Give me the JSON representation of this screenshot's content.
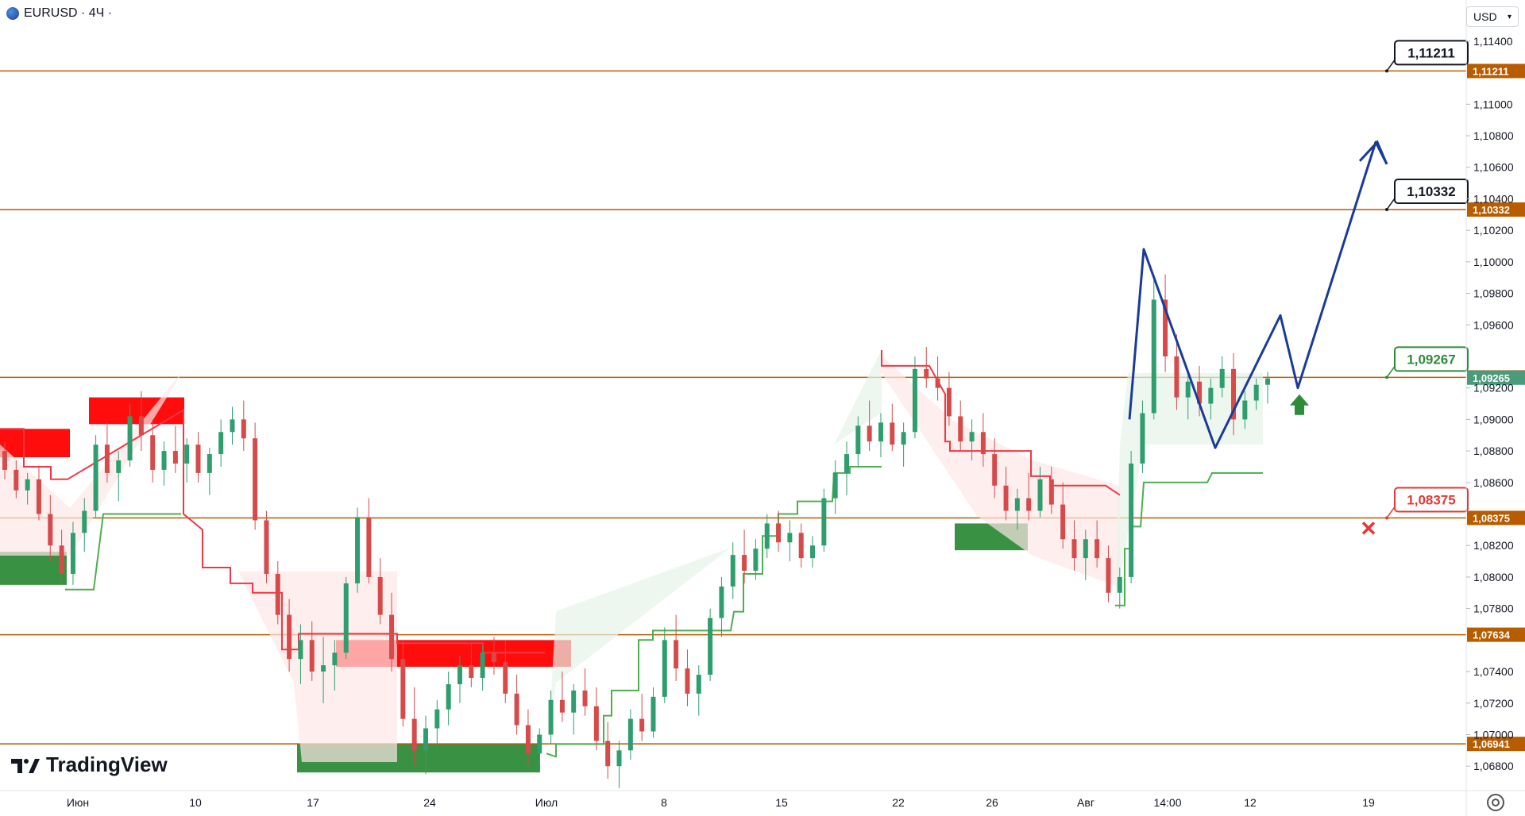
{
  "header": {
    "symbol": "EURUSD · 4Ч ·",
    "currency": "USD"
  },
  "branding": {
    "logo_text": "TradingView"
  },
  "chart_data": {
    "type": "candlestick",
    "symbol": "EURUSD",
    "timeframe": "4Ч",
    "y_axis": {
      "ticks": [
        "1,11400",
        "1,11000",
        "1,10800",
        "1,10600",
        "1,10400",
        "1,10200",
        "1,10000",
        "1,09800",
        "1,09600",
        "1,09200",
        "1,09000",
        "1,08800",
        "1,08600",
        "1,08200",
        "1,08000",
        "1,07800",
        "1,07400",
        "1,07200",
        "1,07000",
        "1,06800"
      ],
      "range": [
        1.0668,
        1.1146
      ]
    },
    "x_axis": {
      "ticks": [
        "Июн",
        "10",
        "17",
        "24",
        "Июл",
        "8",
        "15",
        "22",
        "26",
        "Авг",
        "14:00",
        "12",
        "19"
      ]
    },
    "levels": [
      {
        "value": 1.11211,
        "label": "1,11211",
        "color": "#b85c00"
      },
      {
        "value": 1.10332,
        "label": "1,10332",
        "color": "#b85c00"
      },
      {
        "value": 1.09267,
        "label": "1,09267",
        "color": "#b85c00"
      },
      {
        "value": 1.09265,
        "label": "1,09265",
        "color": "#4a9a7c"
      },
      {
        "value": 1.08375,
        "label": "1,08375",
        "color": "#b85c00"
      },
      {
        "value": 1.07634,
        "label": "1,07634",
        "color": "#b85c00"
      },
      {
        "value": 1.06941,
        "label": "1,06941",
        "color": "#b85c00"
      }
    ],
    "callouts": [
      {
        "label": "1,11211",
        "value": 1.11211,
        "style": "black"
      },
      {
        "label": "1,10332",
        "value": 1.10332,
        "style": "black"
      },
      {
        "label": "1,09267",
        "value": 1.09267,
        "style": "green"
      },
      {
        "label": "1,08375",
        "value": 1.08375,
        "style": "red"
      }
    ],
    "forecast_path": {
      "color": "#1a3c96",
      "points": [
        [
          1.09,
          1.1008
        ],
        [
          1.0888,
          1.0882
        ],
        [
          1.0882,
          1.0966
        ],
        [
          1.092,
          1.092
        ],
        [
          1.1076,
          1.1062
        ]
      ]
    },
    "candles": [
      [
        1.088,
        1.0886,
        1.0862,
        1.0868
      ],
      [
        1.0868,
        1.0874,
        1.085,
        1.0855
      ],
      [
        1.0855,
        1.0866,
        1.0846,
        1.0862
      ],
      [
        1.0862,
        1.087,
        1.0836,
        1.084
      ],
      [
        1.084,
        1.0852,
        1.081,
        1.082
      ],
      [
        1.082,
        1.083,
        1.0795,
        1.0802
      ],
      [
        1.0802,
        1.0835,
        1.0795,
        1.0828
      ],
      [
        1.0828,
        1.085,
        1.0816,
        1.0842
      ],
      [
        1.0842,
        1.089,
        1.0838,
        1.0884
      ],
      [
        1.0884,
        1.0898,
        1.086,
        1.0866
      ],
      [
        1.0866,
        1.088,
        1.0848,
        1.0874
      ],
      [
        1.0874,
        1.091,
        1.087,
        1.0902
      ],
      [
        1.0902,
        1.0918,
        1.088,
        1.089
      ],
      [
        1.089,
        1.09,
        1.086,
        1.0868
      ],
      [
        1.0868,
        1.0886,
        1.0858,
        1.088
      ],
      [
        1.088,
        1.0896,
        1.0866,
        1.0872
      ],
      [
        1.0872,
        1.0888,
        1.086,
        1.0884
      ],
      [
        1.0884,
        1.0892,
        1.086,
        1.0866
      ],
      [
        1.0866,
        1.0882,
        1.0852,
        1.0878
      ],
      [
        1.0878,
        1.09,
        1.087,
        1.0892
      ],
      [
        1.0892,
        1.0908,
        1.0884,
        1.09
      ],
      [
        1.09,
        1.0912,
        1.088,
        1.0888
      ],
      [
        1.0888,
        1.0898,
        1.083,
        1.0836
      ],
      [
        1.0836,
        1.0842,
        1.0796,
        1.0802
      ],
      [
        1.0802,
        1.081,
        1.077,
        1.0776
      ],
      [
        1.0776,
        1.0786,
        1.074,
        1.0748
      ],
      [
        1.0748,
        1.077,
        1.0732,
        1.076
      ],
      [
        1.076,
        1.0772,
        1.0734,
        1.074
      ],
      [
        1.074,
        1.0762,
        1.072,
        1.0744
      ],
      [
        1.0744,
        1.076,
        1.0728,
        1.0752
      ],
      [
        1.0752,
        1.08,
        1.0748,
        1.0796
      ],
      [
        1.0796,
        1.0844,
        1.079,
        1.0838
      ],
      [
        1.0838,
        1.085,
        1.0796,
        1.08
      ],
      [
        1.08,
        1.0812,
        1.077,
        1.0776
      ],
      [
        1.0776,
        1.079,
        1.074,
        1.0748
      ],
      [
        1.0748,
        1.076,
        1.0705,
        1.071
      ],
      [
        1.071,
        1.073,
        1.068,
        1.069
      ],
      [
        1.069,
        1.0712,
        1.0675,
        1.0704
      ],
      [
        1.0704,
        1.0722,
        1.0692,
        1.0716
      ],
      [
        1.0716,
        1.074,
        1.0706,
        1.0732
      ],
      [
        1.0732,
        1.075,
        1.072,
        1.0744
      ],
      [
        1.0744,
        1.0758,
        1.073,
        1.0736
      ],
      [
        1.0736,
        1.0756,
        1.0728,
        1.0752
      ],
      [
        1.0752,
        1.0762,
        1.0738,
        1.0746
      ],
      [
        1.0746,
        1.076,
        1.072,
        1.0726
      ],
      [
        1.0726,
        1.0738,
        1.07,
        1.0706
      ],
      [
        1.0706,
        1.0716,
        1.068,
        1.0688
      ],
      [
        1.0688,
        1.0704,
        1.0676,
        1.07
      ],
      [
        1.07,
        1.0728,
        1.0694,
        1.0722
      ],
      [
        1.0722,
        1.074,
        1.0708,
        1.0714
      ],
      [
        1.0714,
        1.0732,
        1.07,
        1.0728
      ],
      [
        1.0728,
        1.0742,
        1.0712,
        1.0718
      ],
      [
        1.0718,
        1.073,
        1.069,
        1.0696
      ],
      [
        1.0696,
        1.0708,
        1.0672,
        1.068
      ],
      [
        1.068,
        1.0696,
        1.0666,
        1.069
      ],
      [
        1.069,
        1.0716,
        1.0684,
        1.071
      ],
      [
        1.071,
        1.0726,
        1.0696,
        1.0702
      ],
      [
        1.0702,
        1.073,
        1.0698,
        1.0724
      ],
      [
        1.0724,
        1.0768,
        1.072,
        1.076
      ],
      [
        1.076,
        1.0776,
        1.0734,
        1.0742
      ],
      [
        1.0742,
        1.0754,
        1.0718,
        1.0726
      ],
      [
        1.0726,
        1.0744,
        1.0712,
        1.0738
      ],
      [
        1.0738,
        1.078,
        1.0734,
        1.0774
      ],
      [
        1.0774,
        1.08,
        1.0762,
        1.0794
      ],
      [
        1.0794,
        1.0822,
        1.0786,
        1.0814
      ],
      [
        1.0814,
        1.083,
        1.0796,
        1.0804
      ],
      [
        1.0804,
        1.0824,
        1.0798,
        1.0818
      ],
      [
        1.0818,
        1.084,
        1.0812,
        1.0834
      ],
      [
        1.0834,
        1.0842,
        1.0816,
        1.0822
      ],
      [
        1.0822,
        1.0836,
        1.081,
        1.0828
      ],
      [
        1.0828,
        1.0834,
        1.0806,
        1.0812
      ],
      [
        1.0812,
        1.0826,
        1.0806,
        1.082
      ],
      [
        1.082,
        1.0856,
        1.0816,
        1.085
      ],
      [
        1.085,
        1.0874,
        1.084,
        1.0866
      ],
      [
        1.0866,
        1.0886,
        1.0852,
        1.0878
      ],
      [
        1.0878,
        1.0902,
        1.087,
        1.0896
      ],
      [
        1.0896,
        1.0912,
        1.088,
        1.0886
      ],
      [
        1.0886,
        1.0904,
        1.0876,
        1.0898
      ],
      [
        1.0898,
        1.091,
        1.088,
        1.0884
      ],
      [
        1.0884,
        1.0898,
        1.087,
        1.0892
      ],
      [
        1.0892,
        1.094,
        1.0888,
        1.0932
      ],
      [
        1.0932,
        1.0946,
        1.092,
        1.0926
      ],
      [
        1.0926,
        1.094,
        1.0912,
        1.092
      ],
      [
        1.092,
        1.093,
        1.0896,
        1.0902
      ],
      [
        1.0902,
        1.0912,
        1.088,
        1.0886
      ],
      [
        1.0886,
        1.09,
        1.0874,
        1.0892
      ],
      [
        1.0892,
        1.0904,
        1.087,
        1.0878
      ],
      [
        1.0878,
        1.0888,
        1.085,
        1.0858
      ],
      [
        1.0858,
        1.087,
        1.0836,
        1.0842
      ],
      [
        1.0842,
        1.0856,
        1.083,
        1.085
      ],
      [
        1.085,
        1.0866,
        1.0836,
        1.0842
      ],
      [
        1.0842,
        1.087,
        1.0838,
        1.0862
      ],
      [
        1.0862,
        1.087,
        1.084,
        1.0846
      ],
      [
        1.0846,
        1.086,
        1.0818,
        1.0824
      ],
      [
        1.0824,
        1.0836,
        1.0804,
        1.0812
      ],
      [
        1.0812,
        1.083,
        1.0798,
        1.0824
      ],
      [
        1.0824,
        1.0836,
        1.0806,
        1.0812
      ],
      [
        1.0812,
        1.082,
        1.0784,
        1.079
      ],
      [
        1.079,
        1.0806,
        1.078,
        1.08
      ],
      [
        1.08,
        1.088,
        1.0796,
        1.0872
      ],
      [
        1.0872,
        1.0912,
        1.0866,
        1.0904
      ],
      [
        1.0904,
        1.099,
        1.09,
        1.0976
      ],
      [
        1.0976,
        1.0992,
        1.093,
        1.094
      ],
      [
        1.094,
        1.0954,
        1.0906,
        1.0914
      ],
      [
        1.0914,
        1.093,
        1.09,
        1.0924
      ],
      [
        1.0924,
        1.0934,
        1.0902,
        1.091
      ],
      [
        1.091,
        1.0926,
        1.09,
        1.092
      ],
      [
        1.092,
        1.094,
        1.0914,
        1.0932
      ],
      [
        1.0932,
        1.0942,
        1.089,
        1.09
      ],
      [
        1.09,
        1.0918,
        1.0894,
        1.0912
      ],
      [
        1.0912,
        1.0926,
        1.0906,
        1.0922
      ],
      [
        1.0922,
        1.093,
        1.091,
        1.0926
      ]
    ]
  }
}
